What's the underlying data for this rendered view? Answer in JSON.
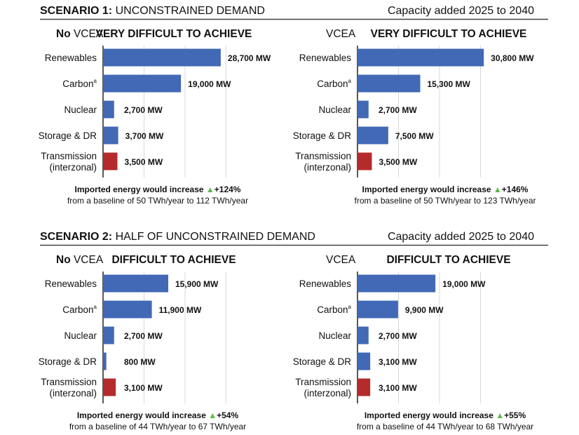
{
  "chart_data": [
    {
      "type": "bar",
      "scenario_bold": "SCENARIO 1:",
      "scenario_title": "UNCONSTRAINED DEMAND",
      "right_header": "Capacity added 2025 to 2040",
      "panels": [
        {
          "label_bold": "No",
          "label": "VCEA",
          "title": "VERY DIFFICULT TO ACHIEVE",
          "categories": [
            "Renewables",
            "Carbon",
            "Nuclear",
            "Storage & DR",
            "Transmission|(interzonal)"
          ],
          "values": [
            28700,
            19000,
            2700,
            3700,
            3500
          ],
          "value_labels": [
            "28,700 MW",
            "19,000 MW",
            "2,700 MW",
            "3,700 MW",
            "3,500 MW"
          ],
          "note_line1": "Imported energy would increase",
          "note_change": "+124%",
          "note_line2": "from a baseline of 50 TWh/year to 112 TWh/year"
        },
        {
          "label_bold": "",
          "label": "VCEA",
          "title": "VERY DIFFICULT TO ACHIEVE",
          "categories": [
            "Renewables",
            "Carbon",
            "Nuclear",
            "Storage & DR",
            "Transmission|(interzonal)"
          ],
          "values": [
            30800,
            15300,
            2700,
            7500,
            3500
          ],
          "value_labels": [
            "30,800 MW",
            "15,300 MW",
            "2,700 MW",
            "7,500 MW",
            "3,500 MW"
          ],
          "note_line1": "Imported energy would increase",
          "note_change": "+146%",
          "note_line2": "from a baseline of 50 TWh/year to 123 TWh/year"
        }
      ]
    },
    {
      "type": "bar",
      "scenario_bold": "SCENARIO 2:",
      "scenario_title": "HALF OF UNCONSTRAINED DEMAND",
      "right_header": "Capacity added 2025 to 2040",
      "panels": [
        {
          "label_bold": "No",
          "label": "VCEA",
          "title": "DIFFICULT TO ACHIEVE",
          "categories": [
            "Renewables",
            "Carbon",
            "Nuclear",
            "Storage & DR",
            "Transmission|(interzonal)"
          ],
          "values": [
            15900,
            11900,
            2700,
            800,
            3100
          ],
          "value_labels": [
            "15,900 MW",
            "11,900 MW",
            "2,700 MW",
            "800 MW",
            "3,100 MW"
          ],
          "note_line1": "Imported energy would increase",
          "note_change": "+54%",
          "note_line2": "from a baseline of 44 TWh/year to 67 TWh/year"
        },
        {
          "label_bold": "",
          "label": "VCEA",
          "title": "DIFFICULT TO ACHIEVE",
          "categories": [
            "Renewables",
            "Carbon",
            "Nuclear",
            "Storage & DR",
            "Transmission|(interzonal)"
          ],
          "values": [
            19000,
            9900,
            2700,
            3100,
            3100
          ],
          "value_labels": [
            "19,000 MW",
            "9,900 MW",
            "2,700 MW",
            "3,100 MW",
            "3,100 MW"
          ],
          "note_line1": "Imported energy would increase",
          "note_change": "+55%",
          "note_line2": "from a baseline of 44 TWh/year to 68 TWh/year"
        }
      ]
    }
  ],
  "carbon_superscript": "a",
  "xlim": [
    0,
    30000
  ],
  "grid_step": 10000,
  "grid": true,
  "colors": {
    "bar": "#4169b5",
    "transmission": "#b52a2a",
    "increase_arrow": "#5cb848",
    "grid": "#d9d9d9"
  }
}
